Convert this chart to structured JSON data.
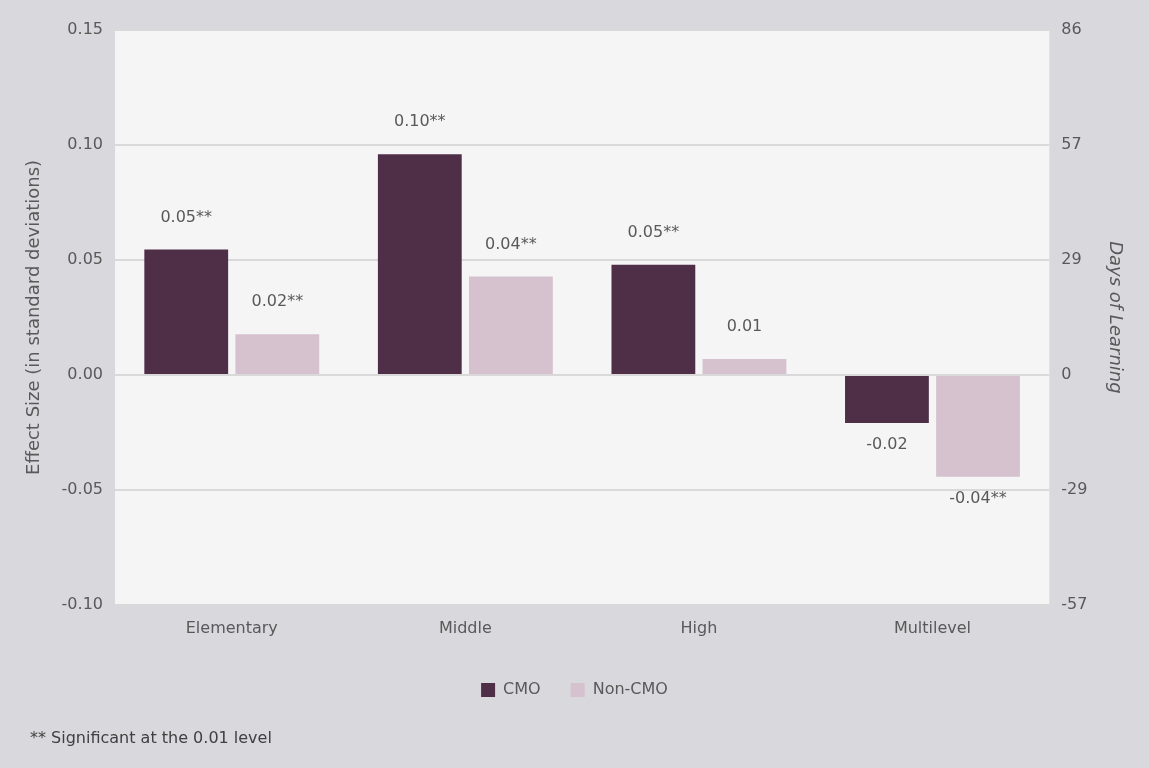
{
  "chart_data": {
    "type": "bar",
    "ylabel": "Effect Size (in standard deviations)",
    "y2label": "Days of Learning",
    "categories": [
      "Elementary",
      "Middle",
      "High",
      "Multilevel"
    ],
    "series": [
      {
        "name": "CMO",
        "color": "#4f2e48",
        "values": [
          0.0545,
          0.096,
          0.0479,
          -0.0209
        ],
        "value_labels": [
          "0.05**",
          "0.10**",
          "0.05**",
          "-0.02"
        ]
      },
      {
        "name": "Non-CMO",
        "color": "#d6c1cf",
        "values": [
          0.0177,
          0.0428,
          0.0069,
          -0.0443
        ],
        "value_labels": [
          "0.02**",
          "0.04**",
          "0.01",
          "-0.04**"
        ]
      }
    ],
    "ylim": [
      -0.1,
      0.15
    ],
    "yticks": [
      {
        "value": -0.1,
        "label": "-0.10"
      },
      {
        "value": -0.05,
        "label": "-0.05"
      },
      {
        "value": 0,
        "label": "0.00"
      },
      {
        "value": 0.05,
        "label": "0.05"
      },
      {
        "value": 0.1,
        "label": "0.10"
      },
      {
        "value": 0.15,
        "label": "0.15"
      }
    ],
    "y2lim": [
      -57.3,
      85.95
    ],
    "y2ticks": [
      {
        "value": -57.3,
        "label": "-57"
      },
      {
        "value": -28.65,
        "label": "-29"
      },
      0,
      {
        "value": 28.65,
        "label": "29"
      },
      {
        "value": 57.3,
        "label": "57"
      },
      {
        "value": 85.95,
        "label": "86"
      }
    ],
    "grid": "y",
    "legend": "bottom",
    "annotations": [
      "** Significant at the 0.01 level"
    ]
  }
}
